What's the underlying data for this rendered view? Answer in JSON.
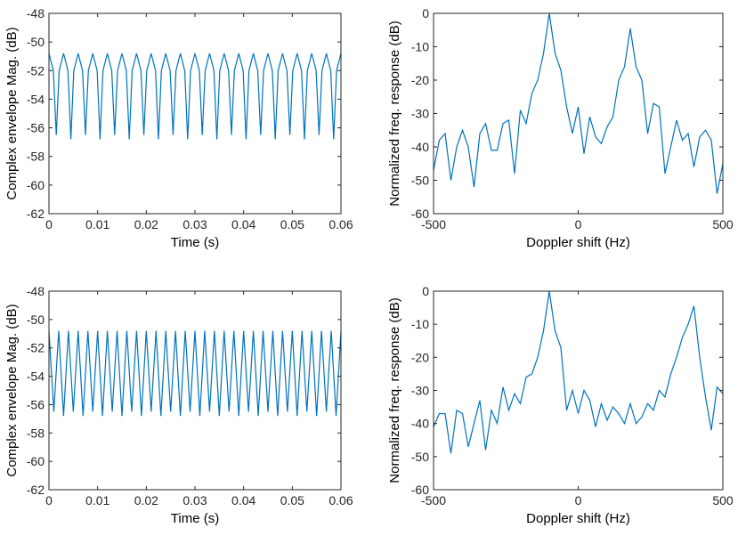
{
  "chart_data": [
    {
      "type": "line",
      "xlabel": "Time (s)",
      "ylabel": "Complex envelope Mag. (dB)",
      "color": "#0072bd",
      "xlim": [
        0,
        0.06
      ],
      "xticks": [
        0,
        0.01,
        0.02,
        0.03,
        0.04,
        0.05,
        0.06
      ],
      "ylim": [
        -62,
        -48
      ],
      "yticks": [
        -62,
        -60,
        -58,
        -56,
        -54,
        -52,
        -50,
        -48
      ],
      "x": [
        0,
        0.0009,
        0.0015,
        0.0021,
        0.003,
        0.0039,
        0.0045,
        0.0051,
        0.006,
        0.0069,
        0.0075,
        0.0081,
        0.009,
        0.0099,
        0.0105,
        0.0111,
        0.012,
        0.0129,
        0.0135,
        0.0141,
        0.015,
        0.0159,
        0.0165,
        0.0171,
        0.018,
        0.0189,
        0.0195,
        0.0201,
        0.021,
        0.0219,
        0.0225,
        0.0231,
        0.024,
        0.0249,
        0.0255,
        0.0261,
        0.027,
        0.0279,
        0.0285,
        0.0291,
        0.03,
        0.0309,
        0.0315,
        0.0321,
        0.033,
        0.0339,
        0.0345,
        0.0351,
        0.036,
        0.0369,
        0.0375,
        0.0381,
        0.039,
        0.0399,
        0.0405,
        0.0411,
        0.042,
        0.0429,
        0.0435,
        0.0441,
        0.045,
        0.0459,
        0.0465,
        0.0471,
        0.048,
        0.0489,
        0.0495,
        0.0501,
        0.051,
        0.0519,
        0.0525,
        0.0531,
        0.054,
        0.0549,
        0.0555,
        0.0561,
        0.057,
        0.0579,
        0.0585,
        0.0591,
        0.06
      ],
      "values": [
        -50.8,
        -52,
        -56.5,
        -52,
        -50.8,
        -52,
        -56.8,
        -52,
        -50.8,
        -52,
        -56.5,
        -52,
        -50.8,
        -52,
        -56.8,
        -52,
        -50.8,
        -52,
        -56.5,
        -52,
        -50.8,
        -52,
        -56.8,
        -52,
        -50.8,
        -52,
        -56.5,
        -52,
        -50.8,
        -52,
        -56.8,
        -52,
        -50.8,
        -52,
        -56.5,
        -52,
        -50.8,
        -52,
        -56.8,
        -52,
        -50.8,
        -52,
        -56.5,
        -52,
        -50.8,
        -52,
        -56.8,
        -52,
        -50.8,
        -52,
        -56.5,
        -52,
        -50.8,
        -52,
        -56.8,
        -52,
        -50.8,
        -52,
        -56.5,
        -52,
        -50.8,
        -52,
        -56.8,
        -52,
        -50.8,
        -52,
        -56.5,
        -52,
        -50.8,
        -52,
        -56.8,
        -52,
        -50.8,
        -52,
        -56.5,
        -52,
        -50.8,
        -52,
        -56.8,
        -52,
        -50.8
      ]
    },
    {
      "type": "line",
      "xlabel": "Doppler shift (Hz)",
      "ylabel": "Normalized freq. response (dB)",
      "color": "#0072bd",
      "xlim": [
        -500,
        500
      ],
      "xticks": [
        -500,
        0,
        500
      ],
      "ylim": [
        -60,
        0
      ],
      "yticks": [
        -60,
        -50,
        -40,
        -30,
        -20,
        -10,
        0
      ],
      "x": [
        -500,
        -480,
        -460,
        -440,
        -420,
        -400,
        -380,
        -360,
        -340,
        -320,
        -300,
        -280,
        -260,
        -240,
        -220,
        -200,
        -180,
        -160,
        -140,
        -120,
        -100,
        -80,
        -60,
        -40,
        -20,
        0,
        20,
        40,
        60,
        80,
        100,
        120,
        140,
        160,
        180,
        200,
        220,
        240,
        260,
        280,
        300,
        320,
        340,
        360,
        380,
        400,
        420,
        440,
        460,
        480,
        500
      ],
      "values": [
        -47,
        -38,
        -36,
        -50,
        -40,
        -35,
        -40,
        -52,
        -36,
        -33,
        -41,
        -41,
        -33,
        -32,
        -48,
        -29,
        -33,
        -24,
        -20,
        -12,
        0,
        -12,
        -17,
        -28,
        -36,
        -28,
        -42,
        -31,
        -37,
        -39,
        -34,
        -31,
        -20,
        -16,
        -4.5,
        -16,
        -20,
        -36,
        -27,
        -28,
        -48,
        -40,
        -32,
        -38,
        -36,
        -46,
        -37,
        -35,
        -38,
        -54,
        -45
      ]
    },
    {
      "type": "line",
      "xlabel": "Time (s)",
      "ylabel": "Complex envelope Mag. (dB)",
      "color": "#0072bd",
      "xlim": [
        0,
        0.06
      ],
      "xticks": [
        0,
        0.01,
        0.02,
        0.03,
        0.04,
        0.05,
        0.06
      ],
      "ylim": [
        -62,
        -48
      ],
      "yticks": [
        -62,
        -60,
        -58,
        -56,
        -54,
        -52,
        -50,
        -48
      ],
      "x": [
        0,
        0.001,
        0.002,
        0.003,
        0.004,
        0.005,
        0.006,
        0.007,
        0.008,
        0.009,
        0.01,
        0.011,
        0.012,
        0.013,
        0.014,
        0.015,
        0.016,
        0.017,
        0.018,
        0.019,
        0.02,
        0.021,
        0.022,
        0.023,
        0.024,
        0.025,
        0.026,
        0.027,
        0.028,
        0.029,
        0.03,
        0.031,
        0.032,
        0.033,
        0.034,
        0.035,
        0.036,
        0.037,
        0.038,
        0.039,
        0.04,
        0.041,
        0.042,
        0.043,
        0.044,
        0.045,
        0.046,
        0.047,
        0.048,
        0.049,
        0.05,
        0.051,
        0.052,
        0.053,
        0.054,
        0.055,
        0.056,
        0.057,
        0.058,
        0.059,
        0.06
      ],
      "values": [
        -50.8,
        -56.5,
        -50.8,
        -56.8,
        -50.8,
        -56.5,
        -50.8,
        -56.8,
        -50.8,
        -56.5,
        -50.8,
        -56.8,
        -50.8,
        -56.5,
        -50.8,
        -56.8,
        -50.8,
        -56.5,
        -50.8,
        -56.8,
        -50.8,
        -56.5,
        -50.8,
        -56.8,
        -50.8,
        -56.5,
        -50.8,
        -56.8,
        -50.8,
        -56.5,
        -50.8,
        -56.8,
        -50.8,
        -56.5,
        -50.8,
        -56.8,
        -50.8,
        -56.5,
        -50.8,
        -56.8,
        -50.8,
        -56.5,
        -50.8,
        -56.8,
        -50.8,
        -56.5,
        -50.8,
        -56.8,
        -50.8,
        -56.5,
        -50.8,
        -56.8,
        -50.8,
        -56.5,
        -50.8,
        -56.8,
        -50.8,
        -56.5,
        -50.8,
        -56.8,
        -50.8
      ]
    },
    {
      "type": "line",
      "xlabel": "Doppler shift (Hz)",
      "ylabel": "Normalized freq. response (dB)",
      "color": "#0072bd",
      "xlim": [
        -500,
        500
      ],
      "xticks": [
        -500,
        0,
        500
      ],
      "ylim": [
        -60,
        0
      ],
      "yticks": [
        -60,
        -50,
        -40,
        -30,
        -20,
        -10,
        0
      ],
      "x": [
        -500,
        -480,
        -460,
        -440,
        -420,
        -400,
        -380,
        -360,
        -340,
        -320,
        -300,
        -280,
        -260,
        -240,
        -220,
        -200,
        -180,
        -160,
        -140,
        -120,
        -100,
        -80,
        -60,
        -40,
        -20,
        0,
        20,
        40,
        60,
        80,
        100,
        120,
        140,
        160,
        180,
        200,
        220,
        240,
        260,
        280,
        300,
        320,
        340,
        360,
        380,
        400,
        420,
        440,
        460,
        480,
        500
      ],
      "values": [
        -41,
        -37,
        -37,
        -49,
        -36,
        -37,
        -47,
        -40,
        -33,
        -48,
        -36,
        -40,
        -29,
        -36,
        -31,
        -34,
        -26,
        -25,
        -20,
        -12,
        0,
        -12,
        -17,
        -36,
        -30,
        -37,
        -30,
        -33,
        -41,
        -34,
        -39,
        -35,
        -37,
        -40,
        -34,
        -40,
        -38,
        -34,
        -36,
        -30,
        -32,
        -25,
        -20,
        -14,
        -10,
        -4.5,
        -20,
        -32,
        -42,
        -29,
        -31
      ]
    }
  ]
}
